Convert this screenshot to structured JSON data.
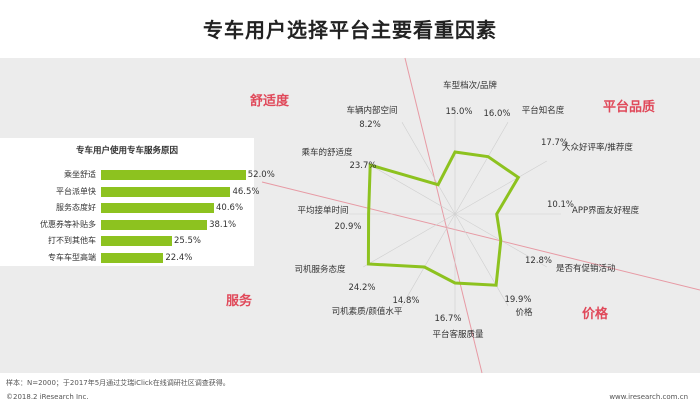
{
  "title": "专车用户选择平台主要看重因素",
  "quadrants": [
    "舒适度",
    "平台品质",
    "服务",
    "价格"
  ],
  "chart_data": [
    {
      "type": "bar",
      "title": "专车用户使用专车服务原因",
      "categories": [
        "乘坐舒适",
        "平台派单快",
        "服务态度好",
        "优惠券等补贴多",
        "打不到其他车",
        "专车车型高端"
      ],
      "values": [
        52.0,
        46.5,
        40.6,
        38.1,
        25.5,
        22.4
      ],
      "value_labels": [
        "52.0%",
        "46.5%",
        "40.6%",
        "38.1%",
        "25.5%",
        "22.4%"
      ],
      "xlim": [
        0,
        100
      ],
      "color": "#8dc21f"
    },
    {
      "type": "radar",
      "categories": [
        "车型档次/品牌",
        "平台知名度",
        "大众好评率/推荐度",
        "APP界面友好程度",
        "是否有促销活动",
        "价格",
        "平台客服质量",
        "司机素质/颜值水平",
        "司机服务态度",
        "平均接单时间",
        "乘车的舒适度",
        "车辆内部空间"
      ],
      "values": [
        15.0,
        16.0,
        17.7,
        10.1,
        12.8,
        19.9,
        16.7,
        14.8,
        24.2,
        20.9,
        23.7,
        8.2
      ],
      "value_labels": [
        "15.0%",
        "16.0%",
        "17.7%",
        "10.1%",
        "12.8%",
        "19.9%",
        "16.7%",
        "14.8%",
        "24.2%",
        "20.9%",
        "23.7%",
        "8.2%"
      ],
      "color": "#8dc21f"
    }
  ],
  "footnote": "样本：N=2000；于2017年5月通过艾瑞iClick在线调研社区调查获得。",
  "copyright": "©2018.2 iResearch Inc.",
  "url": "www.iresearch.com.cn"
}
